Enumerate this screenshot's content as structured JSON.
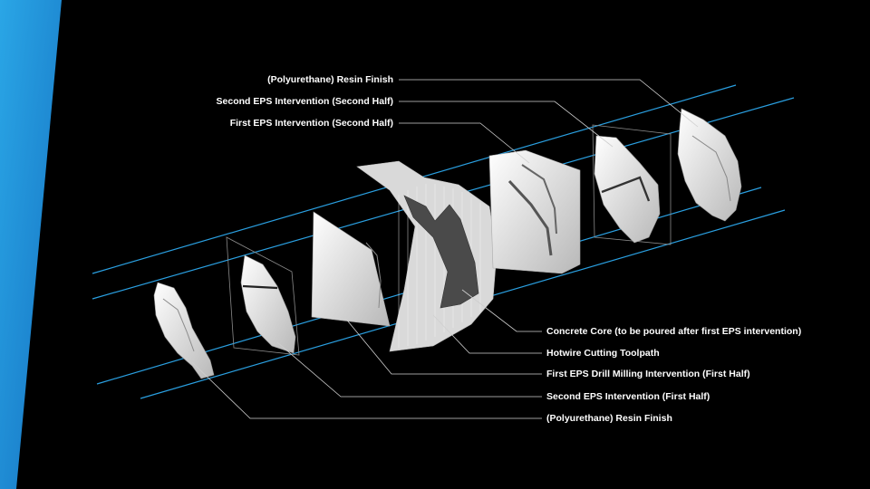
{
  "slide": {
    "accent_color": "#2a9fe0",
    "background_color": "#000000",
    "labels_top": [
      "(Polyurethane) Resin Finish",
      "Second EPS Intervention (Second Half)",
      "First EPS Intervention (Second Half)"
    ],
    "labels_bottom": [
      "Concrete Core (to be poured after first EPS intervention)",
      "Hotwire Cutting Toolpath",
      "First EPS Drill Milling Intervention (First Half)",
      "Second EPS Intervention (First Half)",
      "(Polyurethane) Resin Finish"
    ]
  }
}
